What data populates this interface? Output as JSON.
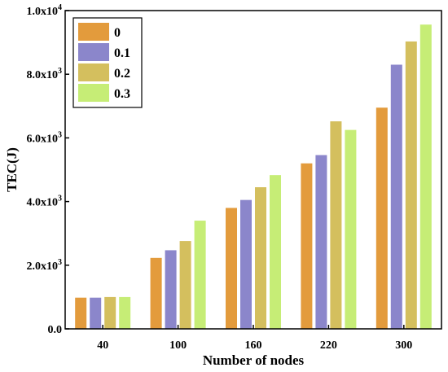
{
  "chart_data": {
    "type": "bar",
    "xlabel": "Number of nodes",
    "ylabel": "TEC(J)",
    "categories": [
      "40",
      "100",
      "160",
      "220",
      "300"
    ],
    "ylim": [
      0,
      10000
    ],
    "yticks": [
      {
        "value": 0,
        "label": "0.0"
      },
      {
        "value": 2000,
        "label": "2.0x10",
        "exp": "3"
      },
      {
        "value": 4000,
        "label": "4.0x10",
        "exp": "3"
      },
      {
        "value": 6000,
        "label": "6.0x10",
        "exp": "3"
      },
      {
        "value": 8000,
        "label": "8.0x10",
        "exp": "3"
      },
      {
        "value": 10000,
        "label": "1.0x10",
        "exp": "4"
      }
    ],
    "series": [
      {
        "name": "0",
        "color": "#e39b3c",
        "values": [
          980,
          2230,
          3800,
          5200,
          6950
        ]
      },
      {
        "name": "0.1",
        "color": "#8b86cb",
        "values": [
          980,
          2470,
          4050,
          5460,
          8300
        ]
      },
      {
        "name": "0.2",
        "color": "#d4bf5e",
        "values": [
          1000,
          2760,
          4450,
          6520,
          9030
        ]
      },
      {
        "name": "0.3",
        "color": "#c6ed76",
        "values": [
          1000,
          3400,
          4830,
          6250,
          9560
        ]
      }
    ],
    "legend": "top-left",
    "grid": false
  }
}
